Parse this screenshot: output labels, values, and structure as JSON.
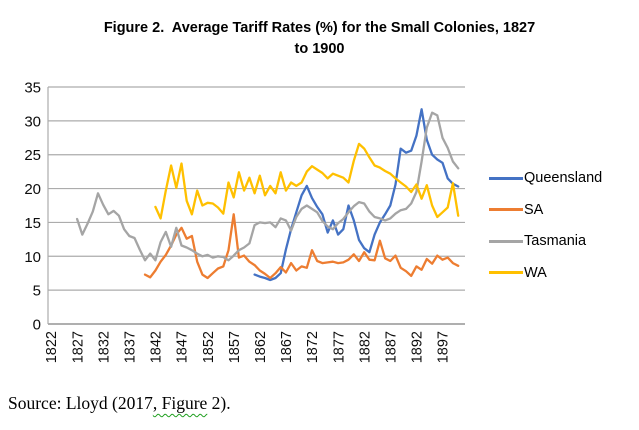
{
  "figure": {
    "title_line1": "Figure 2.  Average Tariff Rates (%) for the Small Colonies, 1827",
    "title_line2": "to 1900",
    "source_prefix": "Source: Lloyd (2017",
    "source_squiggle": ", Figure",
    "source_suffix": " 2)."
  },
  "chart_data": {
    "type": "line",
    "title": "Figure 2. Average Tariff Rates (%) for the Small Colonies, 1827 to 1900",
    "xlabel": "",
    "ylabel": "",
    "ylim": [
      0,
      35
    ],
    "ytick_step": 5,
    "ytick_labels": [
      0,
      5,
      10,
      15,
      20,
      25,
      30,
      35
    ],
    "x_range": [
      1822,
      1900
    ],
    "x_tick_labels": [
      1822,
      1827,
      1832,
      1837,
      1842,
      1847,
      1852,
      1857,
      1862,
      1867,
      1872,
      1877,
      1882,
      1887,
      1892,
      1897
    ],
    "x_tick_rotation": -90,
    "grid": true,
    "legend_position": "right",
    "axis_color": "#7f7f7f",
    "gridline_color": "#acacac",
    "series": [
      {
        "name": "Queensland",
        "color": "#4472C4",
        "start_year": 1861,
        "values": [
          7.3,
          7.0,
          6.8,
          6.5,
          6.8,
          7.5,
          11.0,
          14.0,
          16.5,
          19.0,
          20.4,
          18.6,
          17.3,
          16.2,
          13.5,
          15.3,
          13.2,
          14.0,
          17.5,
          15.3,
          12.4,
          11.2,
          10.6,
          13.2,
          15.0,
          16.2,
          17.5,
          20.6,
          25.9,
          25.3,
          25.6,
          27.8,
          31.7,
          27.2,
          25.0,
          24.3,
          23.8,
          21.5,
          20.7,
          20.3
        ]
      },
      {
        "name": "SA",
        "color": "#ED7D31",
        "start_year": 1840,
        "values": [
          7.3,
          6.9,
          7.9,
          9.2,
          10.2,
          11.6,
          13.2,
          14.2,
          12.6,
          13.0,
          9.2,
          7.3,
          6.8,
          7.5,
          8.2,
          8.5,
          10.9,
          16.2,
          9.8,
          10.1,
          9.2,
          8.7,
          7.9,
          7.4,
          6.8,
          7.5,
          8.4,
          7.6,
          9.0,
          7.9,
          8.5,
          8.3,
          10.9,
          9.3,
          9.0,
          9.1,
          9.2,
          9.0,
          9.1,
          9.5,
          10.3,
          9.3,
          10.6,
          9.5,
          9.4,
          12.3,
          9.7,
          9.3,
          10.1,
          8.3,
          7.8,
          7.1,
          8.5,
          8.0,
          9.6,
          8.9,
          10.1,
          9.5,
          9.8,
          9.0,
          8.6
        ]
      },
      {
        "name": "Tasmania",
        "color": "#A5A5A5",
        "start_year": 1827,
        "values": [
          15.5,
          13.2,
          14.8,
          16.6,
          19.3,
          17.6,
          16.2,
          16.7,
          16.0,
          14.0,
          13.0,
          12.7,
          11.0,
          9.4,
          10.4,
          9.4,
          12.1,
          13.6,
          11.4,
          14.2,
          11.6,
          11.3,
          10.9,
          10.4,
          10.0,
          10.2,
          9.8,
          10.0,
          9.9,
          9.4,
          10.1,
          10.9,
          11.3,
          11.9,
          14.6,
          15.0,
          14.9,
          15.0,
          14.3,
          15.6,
          15.3,
          13.8,
          15.8,
          17.0,
          17.5,
          17.0,
          16.5,
          15.2,
          14.4,
          14.0,
          14.9,
          15.5,
          16.5,
          17.4,
          18.0,
          17.8,
          16.6,
          15.8,
          15.6,
          15.3,
          15.6,
          16.3,
          16.8,
          17.0,
          17.8,
          19.5,
          24.0,
          29.0,
          31.2,
          30.8,
          27.5,
          26.0,
          24.0,
          23.0
        ]
      },
      {
        "name": "WA",
        "color": "#FFC000",
        "start_year": 1842,
        "values": [
          17.3,
          15.6,
          19.7,
          23.4,
          20.1,
          23.7,
          18.2,
          16.2,
          19.7,
          17.5,
          17.9,
          17.8,
          17.2,
          16.3,
          20.9,
          18.7,
          22.4,
          19.7,
          21.6,
          19.3,
          21.9,
          19.0,
          20.4,
          19.3,
          22.4,
          19.7,
          20.9,
          20.4,
          20.9,
          22.5,
          23.3,
          22.8,
          22.3,
          21.5,
          22.2,
          21.9,
          21.6,
          20.9,
          24.1,
          26.6,
          25.9,
          24.6,
          23.4,
          23.1,
          22.6,
          22.2,
          21.5,
          20.9,
          20.3,
          19.5,
          20.6,
          18.5,
          20.5,
          17.5,
          15.8,
          16.5,
          17.2,
          20.8,
          16.0
        ]
      }
    ]
  }
}
